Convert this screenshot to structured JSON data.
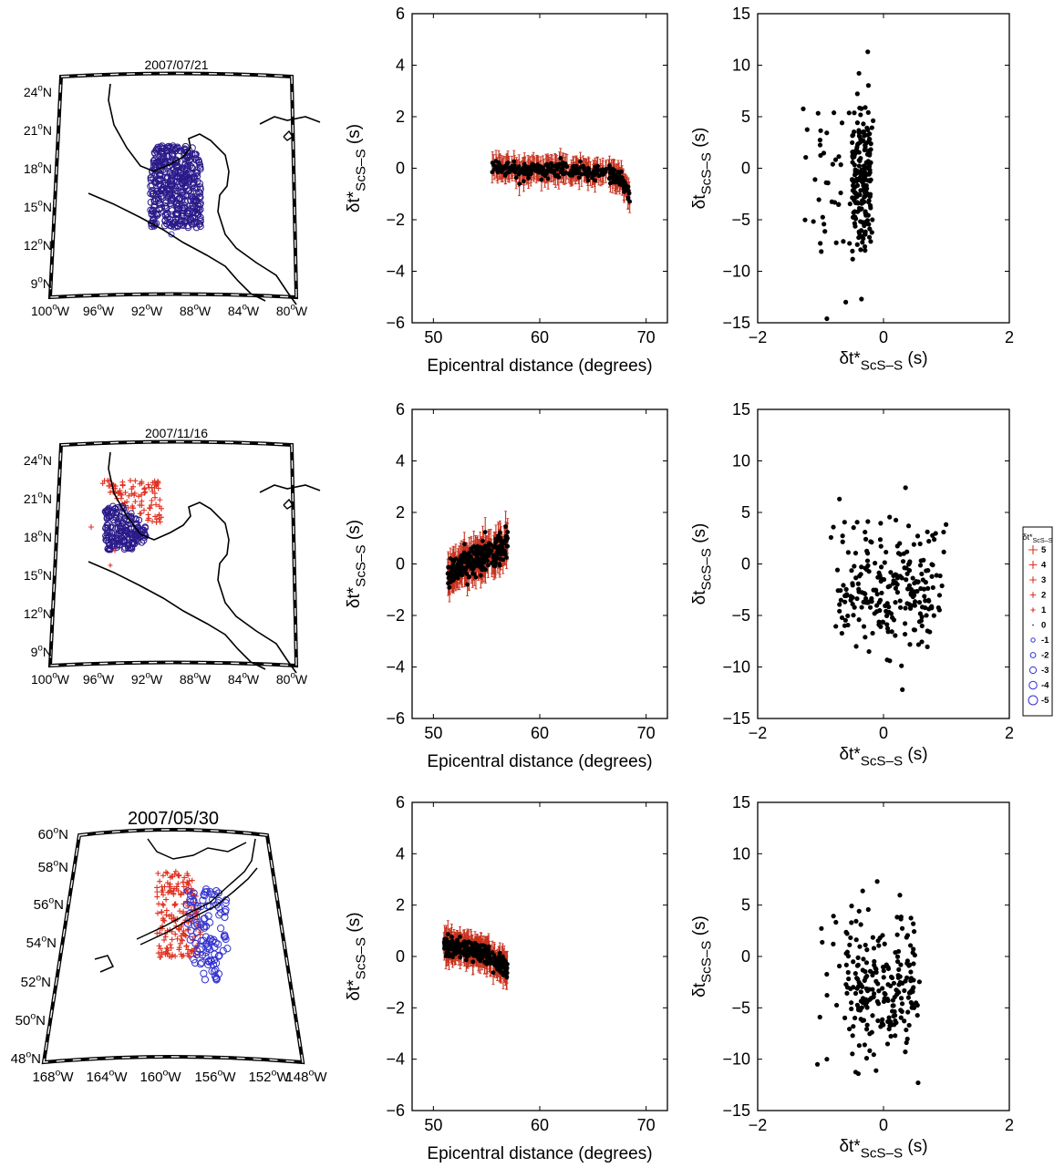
{
  "colors": {
    "error_bar": "#c8321e",
    "point": "#000000",
    "positive_marker": "#e03020",
    "negative_marker": "#3030d0",
    "mixed_marker": "#2a1a8a",
    "coast": "#000000"
  },
  "map_labels": {
    "lat_central_america": [
      "24°N",
      "21°N",
      "18°N",
      "15°N",
      "12°N",
      "9°N"
    ],
    "lon_central_america": [
      "100°W",
      "96°W",
      "92°W",
      "88°W",
      "84°W",
      "80°W"
    ],
    "lat_alaska": [
      "60°N",
      "58°N",
      "56°N",
      "54°N",
      "52°N",
      "50°N",
      "48°N"
    ],
    "lon_alaska": [
      "168°W",
      "164°W",
      "160°W",
      "156°W",
      "152°W",
      "148°W"
    ]
  },
  "maps": [
    {
      "title": "2007/07/21",
      "region": "central_america",
      "marker_style": "negative_dense"
    },
    {
      "title": "2007/11/16",
      "region": "central_america",
      "marker_style": "mixed"
    },
    {
      "title": "2007/05/30",
      "region": "alaska",
      "marker_style": "mixed_split"
    }
  ],
  "legend": {
    "title": "δt*ScS-S",
    "entries": [
      {
        "label": "5",
        "symbol": "plus",
        "level": 5
      },
      {
        "label": "4",
        "symbol": "plus",
        "level": 4
      },
      {
        "label": "3",
        "symbol": "plus",
        "level": 3
      },
      {
        "label": "2",
        "symbol": "plus",
        "level": 2
      },
      {
        "label": "1",
        "symbol": "plus",
        "level": 1
      },
      {
        "label": "0",
        "symbol": "dot",
        "level": 0
      },
      {
        "label": "-1",
        "symbol": "circle",
        "level": 1
      },
      {
        "label": "-2",
        "symbol": "circle",
        "level": 2
      },
      {
        "label": "-3",
        "symbol": "circle",
        "level": 3
      },
      {
        "label": "-4",
        "symbol": "circle",
        "level": 4
      },
      {
        "label": "-5",
        "symbol": "circle",
        "level": 5
      }
    ]
  },
  "chart_data": [
    {
      "type": "scatter",
      "name": "dtstar_vs_distance_1",
      "xlabel": "Epicentral distance (degrees)",
      "ylabel": "δt*ScS-S (s)",
      "xlim": [
        48,
        72
      ],
      "ylim": [
        -6,
        6
      ],
      "xticks": [
        50,
        60,
        70
      ],
      "yticks": [
        -6,
        -4,
        -2,
        0,
        2,
        4,
        6
      ],
      "x_range": [
        55.5,
        68.5
      ],
      "trend": [
        [
          55.5,
          0.1
        ],
        [
          58,
          -0.1
        ],
        [
          62,
          0.0
        ],
        [
          66,
          -0.2
        ],
        [
          67.5,
          -0.3
        ],
        [
          68.5,
          -1.1
        ]
      ],
      "spread": 0.15,
      "error_bar": 0.4
    },
    {
      "type": "scatter",
      "name": "dt_vs_dtstar_1",
      "xlabel": "δt*ScS-S (s)",
      "ylabel": "δtScS-S (s)",
      "xlim": [
        -2,
        2
      ],
      "ylim": [
        -15,
        15
      ],
      "xticks": [
        -2,
        0,
        2
      ],
      "yticks": [
        -15,
        -10,
        -5,
        0,
        5,
        10,
        15
      ],
      "cluster": {
        "x_range": [
          -1.3,
          -0.15
        ],
        "y_range": [
          -15,
          11.3
        ],
        "core_x": [
          -0.5,
          -0.2
        ],
        "core_y": [
          -7,
          4
        ]
      },
      "highlights": [
        [
          -0.25,
          11.3
        ],
        [
          -0.9,
          -14.6
        ],
        [
          -0.6,
          -13.0
        ],
        [
          -0.35,
          -12.7
        ]
      ]
    },
    {
      "type": "scatter",
      "name": "dtstar_vs_distance_2",
      "xlabel": "Epicentral distance (degrees)",
      "ylabel": "δt*ScS-S (s)",
      "xlim": [
        48,
        72
      ],
      "ylim": [
        -6,
        6
      ],
      "xticks": [
        50,
        60,
        70
      ],
      "yticks": [
        -6,
        -4,
        -2,
        0,
        2,
        4,
        6
      ],
      "x_range": [
        51.3,
        57.0
      ],
      "trend": [
        [
          51.3,
          -0.4
        ],
        [
          53,
          -0.1
        ],
        [
          55,
          0.3
        ],
        [
          57,
          0.8
        ]
      ],
      "spread": 0.3,
      "error_bar": 0.5
    },
    {
      "type": "scatter",
      "name": "dt_vs_dtstar_2",
      "xlabel": "δt*ScS-S (s)",
      "ylabel": "δtScS-S (s)",
      "xlim": [
        -2,
        2
      ],
      "ylim": [
        -15,
        15
      ],
      "xticks": [
        -2,
        0,
        2
      ],
      "yticks": [
        -15,
        -10,
        -5,
        0,
        5,
        10,
        15
      ],
      "cluster": {
        "x_range": [
          -0.85,
          1.0
        ],
        "y_range": [
          -12.2,
          7.4
        ],
        "core_x": [
          -0.7,
          0.8
        ],
        "core_y": [
          -7,
          2
        ]
      },
      "highlights": [
        [
          0.35,
          7.4
        ],
        [
          -0.7,
          6.3
        ],
        [
          0.3,
          -12.2
        ],
        [
          0.1,
          -9.4
        ]
      ]
    },
    {
      "type": "scatter",
      "name": "dtstar_vs_distance_3",
      "xlabel": "Epicentral distance (degrees)",
      "ylabel": "δt*ScS-S (s)",
      "xlim": [
        48,
        72
      ],
      "ylim": [
        -6,
        6
      ],
      "xticks": [
        50,
        60,
        70
      ],
      "yticks": [
        -6,
        -4,
        -2,
        0,
        2,
        4,
        6
      ],
      "x_range": [
        51.0,
        57.0
      ],
      "trend": [
        [
          51,
          0.5
        ],
        [
          53,
          0.3
        ],
        [
          55,
          0.1
        ],
        [
          57,
          -0.5
        ]
      ],
      "spread": 0.2,
      "error_bar": 0.45
    },
    {
      "type": "scatter",
      "name": "dt_vs_dtstar_3",
      "xlabel": "δt*ScS-S (s)",
      "ylabel": "δtScS-S (s)",
      "xlim": [
        -2,
        2
      ],
      "ylim": [
        -15,
        15
      ],
      "xticks": [
        -2,
        0,
        2
      ],
      "yticks": [
        -15,
        -10,
        -5,
        0,
        5,
        10,
        15
      ],
      "cluster": {
        "x_range": [
          -1.05,
          0.6
        ],
        "y_range": [
          -12.3,
          7.3
        ],
        "core_x": [
          -0.6,
          0.5
        ],
        "core_y": [
          -8,
          2
        ]
      },
      "highlights": [
        [
          -0.1,
          7.3
        ],
        [
          0.55,
          -12.3
        ],
        [
          -1.05,
          -10.5
        ],
        [
          -0.9,
          -10.0
        ]
      ]
    }
  ]
}
